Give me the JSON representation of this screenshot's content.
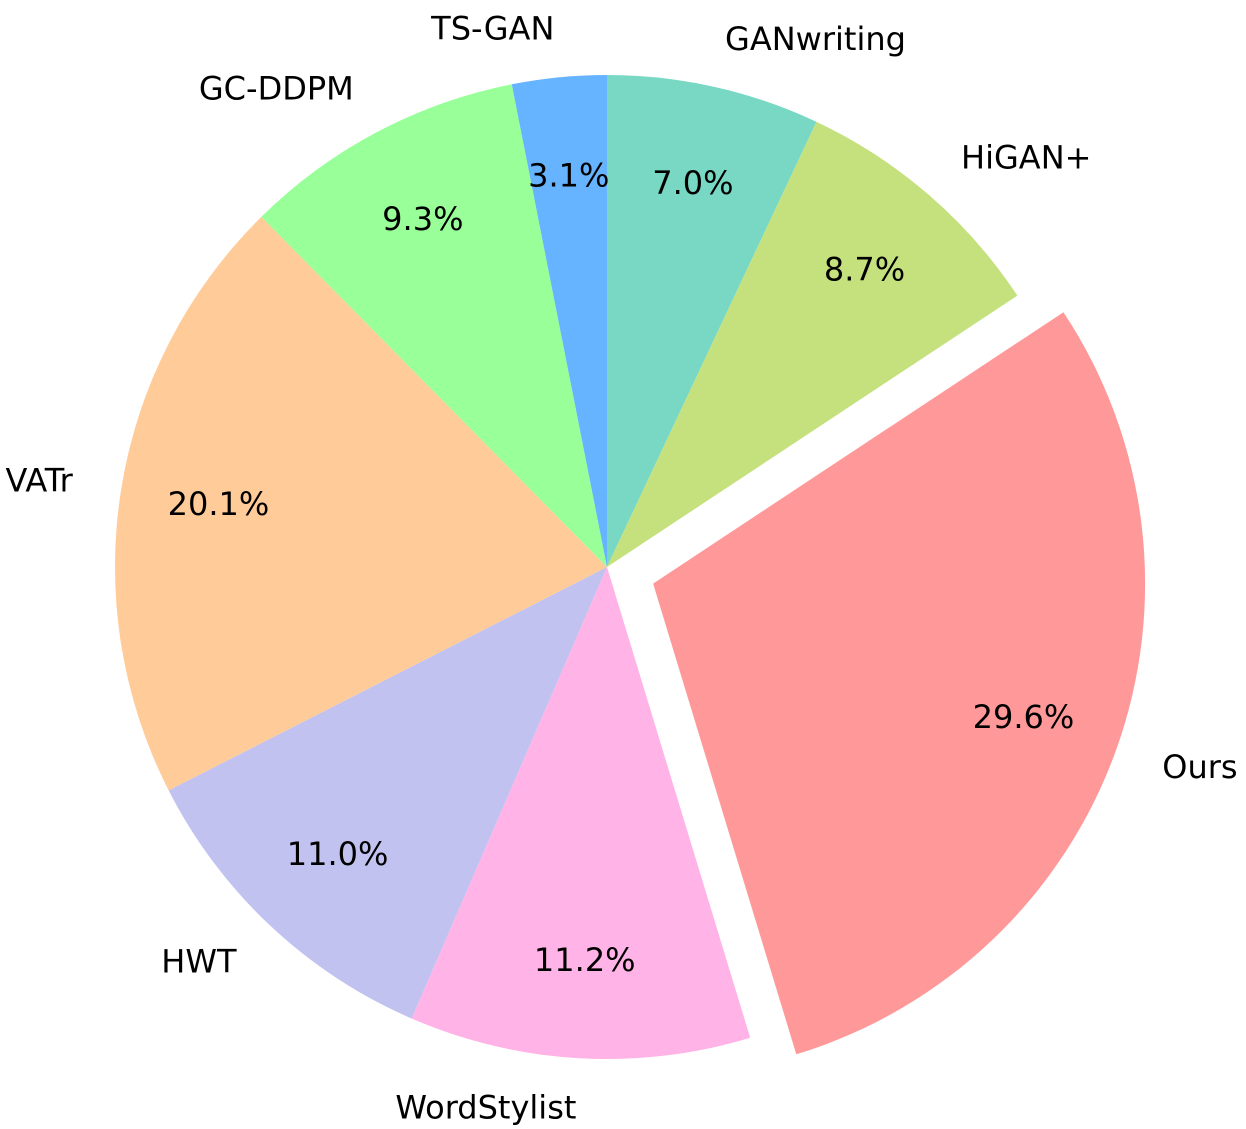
{
  "chart_data": {
    "type": "pie",
    "title": "",
    "start_angle_deg": 90,
    "direction": "clockwise",
    "slices": [
      {
        "label": "GANwriting",
        "value": 7.0,
        "pct_text": "7.0%",
        "color": "#78d8c3",
        "explode": false
      },
      {
        "label": "HiGAN+",
        "value": 8.7,
        "pct_text": "8.7%",
        "color": "#c5e17d",
        "explode": false
      },
      {
        "label": "Ours",
        "value": 29.6,
        "pct_text": "29.6%",
        "color": "#ff9999",
        "explode": true
      },
      {
        "label": "WordStylist",
        "value": 11.2,
        "pct_text": "11.2%",
        "color": "#ffb3e6",
        "explode": false
      },
      {
        "label": "HWT",
        "value": 11.0,
        "pct_text": "11.0%",
        "color": "#c2c2f0",
        "explode": false
      },
      {
        "label": "VATr",
        "value": 20.1,
        "pct_text": "20.1%",
        "color": "#ffcc99",
        "explode": false
      },
      {
        "label": "GC-DDPM",
        "value": 9.3,
        "pct_text": "9.3%",
        "color": "#99ff99",
        "explode": false
      },
      {
        "label": "TS-GAN",
        "value": 3.1,
        "pct_text": "3.1%",
        "color": "#66b3ff",
        "explode": false
      }
    ]
  }
}
